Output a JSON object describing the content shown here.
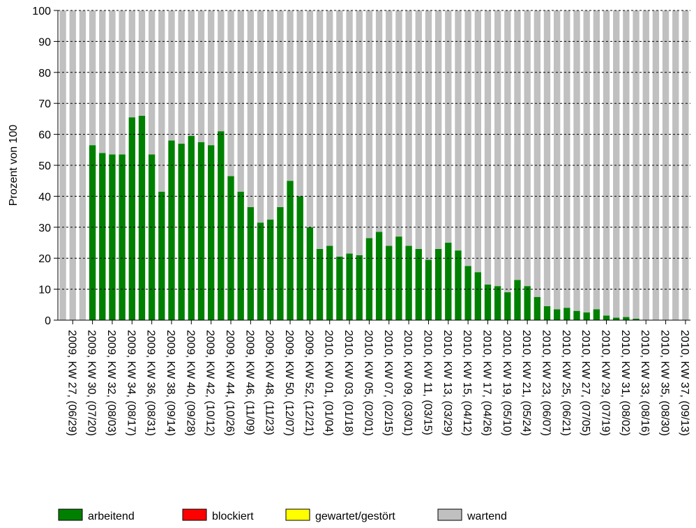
{
  "chart_data": {
    "type": "stacked-bar",
    "y_label": "Prozent von 100",
    "categories": [
      null,
      "2009, KW 27, (06/29)",
      null,
      "2009, KW 30, (07/20)",
      null,
      "2009, KW 32, (08/03)",
      null,
      "2009, KW 34, (08/17)",
      null,
      "2009, KW 36, (08/31)",
      null,
      "2009, KW 38, (09/14)",
      null,
      "2009, KW 40, (09/28)",
      null,
      "2009, KW 42, (10/12)",
      null,
      "2009, KW 44, (10/26)",
      null,
      "2009, KW 46, (11/09)",
      null,
      "2009, KW 48, (11/23)",
      null,
      "2009, KW 50, (12/07)",
      null,
      "2009, KW 52, (12/21)",
      null,
      "2010, KW 01, (01/04)",
      null,
      "2010, KW 03, (01/18)",
      null,
      "2010, KW 05, (02/01)",
      null,
      "2010, KW 07, (02/15)",
      null,
      "2010, KW 09, (03/01)",
      null,
      "2010, KW 11, (03/15)",
      null,
      "2010, KW 13, (03/29)",
      null,
      "2010, KW 15, (04/12)",
      null,
      "2010, KW 17, (04/26)",
      null,
      "2010, KW 19, (05/10)",
      null,
      "2010, KW 21, (05/24)",
      null,
      "2010, KW 23, (06/07)",
      null,
      "2010, KW 25, (06/21)",
      null,
      "2010, KW 27, (07/05)",
      null,
      "2010, KW 29, (07/19)",
      null,
      "2010, KW 31, (08/02)",
      null,
      "2010, KW 33, (08/16)",
      null,
      "2010, KW 35, (08/30)",
      null,
      "2010, KW 37, (09/13)"
    ],
    "series": [
      {
        "name": "arbeitend",
        "color": "#008000",
        "values": [
          0,
          0,
          0,
          56.5,
          54,
          53.5,
          53.5,
          65.5,
          66,
          53.5,
          41.5,
          58,
          57,
          59.5,
          57.5,
          56.5,
          61,
          46.5,
          41.5,
          36.5,
          31.5,
          32.5,
          36.5,
          45,
          40,
          30,
          23,
          24,
          20.5,
          21.5,
          21,
          26.5,
          28.5,
          24,
          27,
          24,
          23,
          19.5,
          23,
          25,
          22.5,
          17.5,
          15.5,
          11.5,
          11,
          9,
          13,
          11,
          7.5,
          4.5,
          3.5,
          4,
          3,
          2.5,
          3.5,
          1.5,
          0.8,
          1,
          0.5,
          0,
          0,
          0,
          0,
          0
        ]
      },
      {
        "name": "blockiert",
        "color": "#ff0000",
        "values": [
          0,
          0,
          0,
          0,
          0,
          0,
          0,
          0,
          0,
          0,
          0,
          0,
          0,
          0,
          0,
          0,
          0,
          0,
          0,
          0,
          0,
          0,
          0,
          0,
          0,
          0,
          0,
          0,
          0,
          0,
          0,
          0,
          0,
          0,
          0,
          0,
          0,
          0,
          0,
          0,
          0,
          0,
          0,
          0,
          0,
          0,
          0,
          0,
          0,
          0,
          0,
          0,
          0,
          0,
          0,
          0,
          0,
          0,
          0,
          0,
          0,
          0,
          0,
          0
        ]
      },
      {
        "name": "gewartet/gestört",
        "color": "#ffff00",
        "values": [
          0,
          0,
          0,
          0,
          0,
          0,
          0,
          0,
          0,
          0,
          0,
          0,
          0,
          0,
          0,
          0,
          0,
          0,
          0,
          0,
          0,
          0,
          0,
          0,
          0,
          0,
          0,
          0,
          0,
          0,
          0,
          0,
          0,
          0,
          0,
          0,
          0,
          0,
          0,
          0,
          0,
          0,
          0,
          0,
          0,
          0,
          0,
          0,
          0,
          0,
          0,
          0,
          0,
          0,
          0,
          0,
          0,
          0,
          0,
          0,
          0,
          0,
          0,
          0
        ]
      },
      {
        "name": "wartend",
        "color": "#c0c0c0",
        "values": [
          100,
          100,
          100,
          43.5,
          46,
          46.5,
          46.5,
          34.5,
          34,
          46.5,
          58.5,
          42,
          43,
          40.5,
          42.5,
          43.5,
          39,
          53.5,
          58.5,
          63.5,
          68.5,
          67.5,
          63.5,
          55,
          60,
          70,
          77,
          76,
          79.5,
          78.5,
          79,
          73.5,
          71.5,
          76,
          73,
          76,
          77,
          80.5,
          77,
          75,
          77.5,
          82.5,
          84.5,
          88.5,
          89,
          91,
          87,
          89,
          92.5,
          95.5,
          96.5,
          96,
          97,
          97.5,
          96.5,
          98.5,
          99.2,
          99,
          99.5,
          100,
          100,
          100,
          100,
          100
        ]
      }
    ],
    "ylim": [
      0,
      100
    ],
    "yticks": [
      0,
      10,
      20,
      30,
      40,
      50,
      60,
      70,
      80,
      90,
      100
    ],
    "grid": true,
    "legend": "bottom"
  }
}
